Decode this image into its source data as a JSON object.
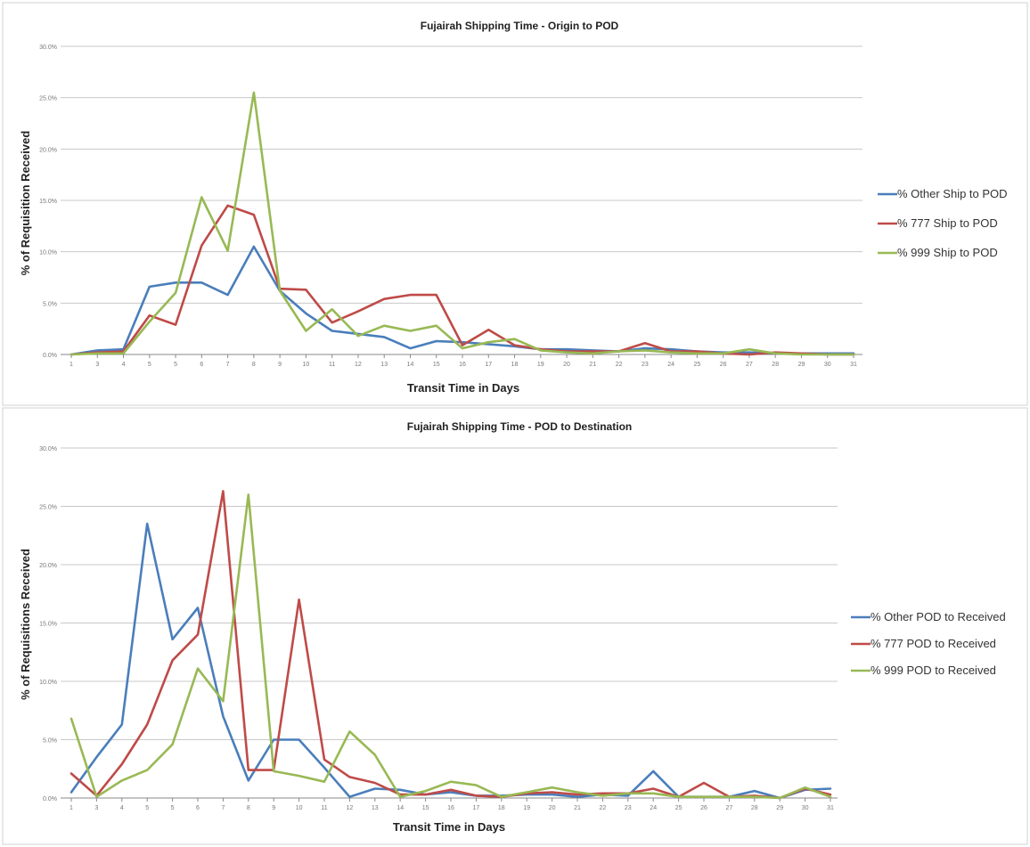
{
  "chart_data": [
    {
      "type": "line",
      "title": "Fujairah Shipping Time - Origin to POD",
      "xlabel": "Transit Time in Days",
      "ylabel": "% of Requisition Received",
      "x": [
        "1",
        "3",
        "4",
        "5",
        "5",
        "6",
        "7",
        "8",
        "9",
        "10",
        "11",
        "12",
        "13",
        "14",
        "15",
        "16",
        "17",
        "18",
        "19",
        "20",
        "21",
        "22",
        "23",
        "24",
        "25",
        "26",
        "27",
        "28",
        "29",
        "30",
        "31"
      ],
      "yticks": [
        "0.0%",
        "5.0%",
        "10.0%",
        "15.0%",
        "20.0%",
        "25.0%",
        "30.0%"
      ],
      "ylim": [
        0,
        30
      ],
      "grid": true,
      "legend": "right",
      "series": [
        {
          "name": "% Other Ship to POD",
          "color": "#4a7ebb",
          "values": [
            0,
            0.4,
            0.5,
            6.6,
            7,
            7,
            5.8,
            10.5,
            6.2,
            4,
            2.3,
            2,
            1.7,
            0.6,
            1.3,
            1.2,
            1,
            0.8,
            0.5,
            0.5,
            0.4,
            0.3,
            0.6,
            0.5,
            0.3,
            0.2,
            0.2,
            0.1,
            0.1,
            0.1,
            0.1
          ]
        },
        {
          "name": "% 777 Ship to POD",
          "color": "#be4b48",
          "values": [
            0,
            0.2,
            0.3,
            3.8,
            2.9,
            10.6,
            14.5,
            13.6,
            6.4,
            6.3,
            3.1,
            4.2,
            5.4,
            5.8,
            5.8,
            0.9,
            2.4,
            0.9,
            0.5,
            0.3,
            0.3,
            0.3,
            1.1,
            0.3,
            0.3,
            0.1,
            0,
            0.2,
            0.1,
            0,
            0
          ]
        },
        {
          "name": "% 999 Ship to POD",
          "color": "#98b954",
          "values": [
            0,
            0.1,
            0.1,
            3.2,
            6,
            15.3,
            10.1,
            25.5,
            6.2,
            2.3,
            4.4,
            1.8,
            2.8,
            2.3,
            2.8,
            0.6,
            1.2,
            1.5,
            0.4,
            0.2,
            0.1,
            0.3,
            0.4,
            0.2,
            0.1,
            0.1,
            0.5,
            0.1,
            0,
            0,
            0
          ]
        }
      ]
    },
    {
      "type": "line",
      "title": "Fujairah Shipping Time - POD to Destination",
      "xlabel": "Transit Time in Days",
      "ylabel": "% of Requisitions Received",
      "x": [
        "1",
        "3",
        "4",
        "5",
        "5",
        "6",
        "7",
        "8",
        "9",
        "10",
        "11",
        "12",
        "13",
        "14",
        "15",
        "16",
        "17",
        "18",
        "19",
        "20",
        "21",
        "22",
        "23",
        "24",
        "25",
        "26",
        "27",
        "28",
        "29",
        "30",
        "31"
      ],
      "yticks": [
        "0.0%",
        "5.0%",
        "10.0%",
        "15.0%",
        "20.0%",
        "25.0%",
        "30.0%"
      ],
      "ylim": [
        0,
        30
      ],
      "grid": true,
      "legend": "right",
      "series": [
        {
          "name": "% Other POD to Received",
          "color": "#4a7ebb",
          "values": [
            0.5,
            3.5,
            6.3,
            23.5,
            13.6,
            16.3,
            7,
            1.5,
            5,
            5,
            2.6,
            0.1,
            0.8,
            0.7,
            0.3,
            0.5,
            0.2,
            0.2,
            0.3,
            0.3,
            0.1,
            0.3,
            0.2,
            2.3,
            0.1,
            0.1,
            0.1,
            0.6,
            0,
            0.7,
            0.8
          ]
        },
        {
          "name": "% 777 POD to Received",
          "color": "#be4b48",
          "values": [
            2.1,
            0.2,
            2.9,
            6.3,
            11.8,
            14,
            26.3,
            2.4,
            2.4,
            17,
            3.3,
            1.8,
            1.3,
            0.3,
            0.3,
            0.7,
            0.2,
            0.1,
            0.4,
            0.5,
            0.3,
            0.4,
            0.4,
            0.8,
            0.1,
            1.3,
            0.1,
            0.2,
            0,
            0.8,
            0.3
          ]
        },
        {
          "name": "% 999 POD to Received",
          "color": "#98b954",
          "values": [
            6.8,
            0.1,
            1.5,
            2.4,
            4.6,
            11.1,
            8.3,
            26,
            2.3,
            1.9,
            1.4,
            5.7,
            3.7,
            0.1,
            0.6,
            1.4,
            1.1,
            0.1,
            0.5,
            0.9,
            0.5,
            0.2,
            0.4,
            0.4,
            0.1,
            0.1,
            0.1,
            0.1,
            0,
            0.9,
            0.1
          ]
        }
      ]
    }
  ]
}
